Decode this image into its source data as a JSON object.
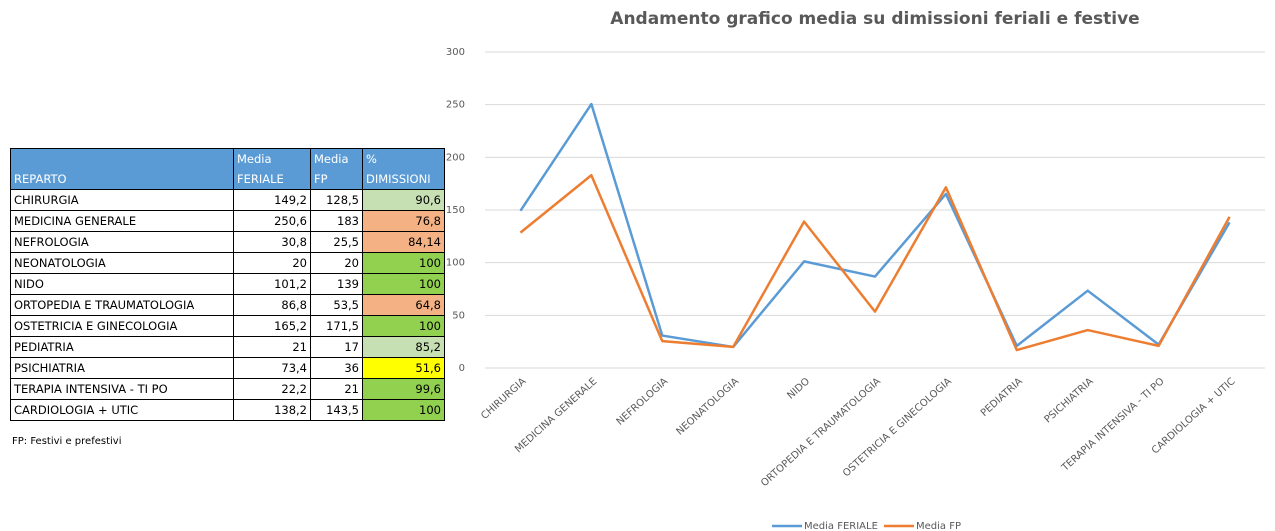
{
  "table": {
    "header": [
      "REPARTO",
      "Media FERIALE",
      "Media FP",
      "% DIMISSIONI"
    ],
    "rows": [
      [
        "CHIRURGIA",
        "149,2",
        "128,5",
        "90,6"
      ],
      [
        "MEDICINA GENERALE",
        "250,6",
        "183",
        "76,8"
      ],
      [
        "NEFROLOGIA",
        "30,8",
        "25,5",
        "84,14"
      ],
      [
        "NEONATOLOGIA",
        "20",
        "20",
        "100"
      ],
      [
        "NIDO",
        "101,2",
        "139",
        "100"
      ],
      [
        "ORTOPEDIA E TRAUMATOLOGIA",
        "86,8",
        "53,5",
        "64,8"
      ],
      [
        "OSTETRICIA E GINECOLOGIA",
        "165,2",
        "171,5",
        "100"
      ],
      [
        "PEDIATRIA",
        "21",
        "17",
        "85,2"
      ],
      [
        "PSICHIATRIA",
        "73,4",
        "36",
        "51,6"
      ],
      [
        "TERAPIA INTENSIVA - TI PO",
        "22,2",
        "21",
        "99,6"
      ],
      [
        "CARDIOLOGIA + UTIC",
        "138,2",
        "143,5",
        "100"
      ]
    ],
    "percent_colors": [
      "#c6e0b4",
      "#f4b183",
      "#f4b183",
      "#92d050",
      "#92d050",
      "#f4b183",
      "#92d050",
      "#c6e0b4",
      "#ffff00",
      "#92d050",
      "#92d050"
    ],
    "header_color": "#5b9bd5",
    "footnote": "FP: Festivi e prefestivi"
  },
  "chart_data": {
    "type": "line",
    "title": "Andamento grafico media su dimissioni feriali e festive",
    "categories": [
      "CHIRURGIA",
      "MEDICINA GENERALE",
      "NEFROLOGIA",
      "NEONATOLOGIA",
      "NIDO",
      "ORTOPEDIA E TRAUMATOLOGIA",
      "OSTETRICIA E GINECOLOGIA",
      "PEDIATRIA",
      "PSICHIATRIA",
      "TERAPIA INTENSIVA - TI PO",
      "CARDIOLOGIA + UTIC"
    ],
    "series": [
      {
        "name": "Media FERIALE",
        "color": "#5b9bd5",
        "values": [
          149.2,
          250.6,
          30.8,
          20,
          101.2,
          86.8,
          165.2,
          21,
          73.4,
          22.2,
          138.2
        ]
      },
      {
        "name": "Media FP",
        "color": "#ed7d31",
        "values": [
          128.5,
          183,
          25.5,
          20,
          139,
          53.5,
          171.5,
          17,
          36,
          21,
          143.5
        ]
      }
    ],
    "ylim": [
      0,
      300
    ],
    "yticks": [
      0,
      50,
      100,
      150,
      200,
      250,
      300
    ],
    "grid": true,
    "legend": "bottom"
  }
}
